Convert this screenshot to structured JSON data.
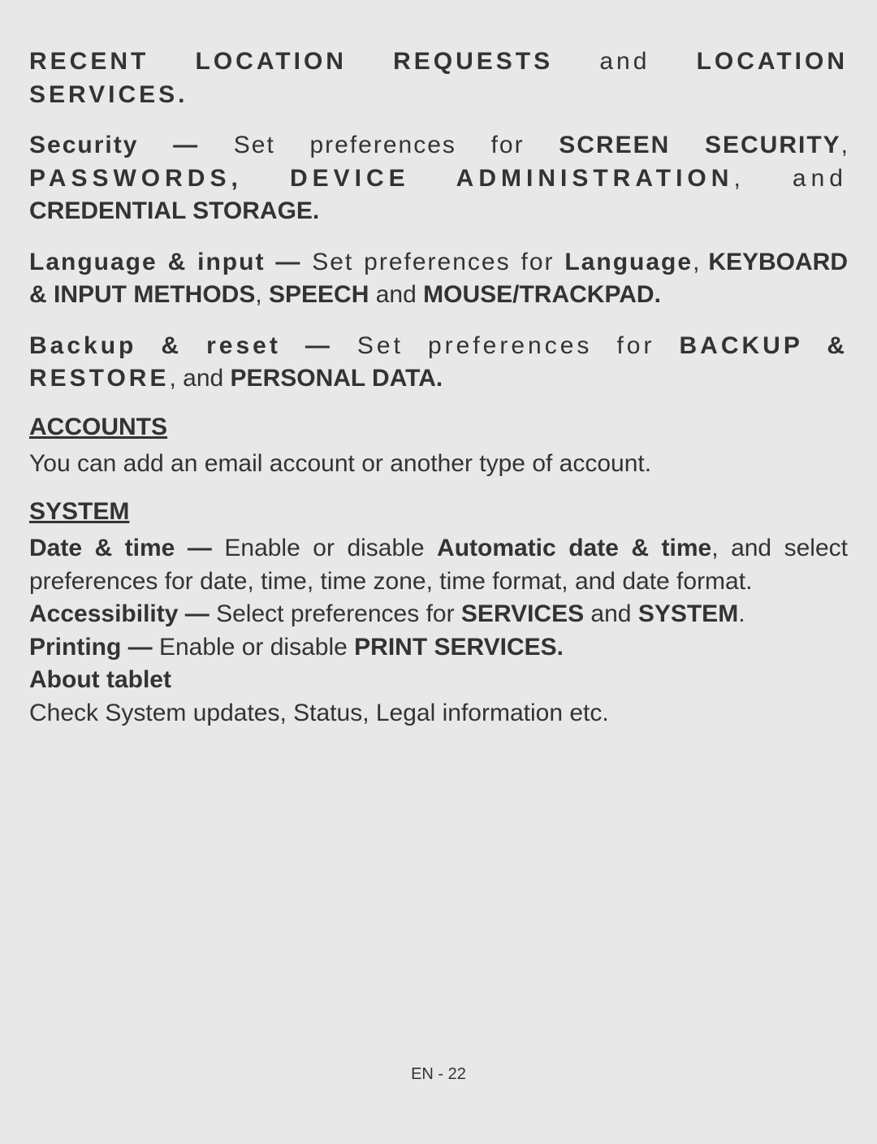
{
  "p1_a": "RECENT LOCATION REQUESTS",
  "p1_b": " and ",
  "p1_c": "LOCATION SERVICES.",
  "p2_a": "Security —",
  "p2_b": " Set preferences for ",
  "p2_c": "SCREEN SECURITY",
  "p2_d": ", ",
  "p2_e": "PASSWORDS, DEVICE ADMINISTRATION",
  "p2_f": ", and ",
  "p2_g": "CREDENTIAL STORAGE.",
  "p3_a": "Language & input —",
  "p3_b": " Set preferences for ",
  "p3_c": "Language",
  "p3_d": ", ",
  "p3_e": "KEYBOARD & INPUT METHODS",
  "p3_f": ", ",
  "p3_g": "SPEECH",
  "p3_h": " and ",
  "p3_i": "MOUSE/TRACKPAD.",
  "p4_a": "Backup & reset —",
  "p4_b": " Set preferences for ",
  "p4_c": "BACKUP & RESTORE",
  "p4_d": ", and ",
  "p4_e": "PERSONAL DATA.",
  "accounts_title": "ACCOUNTS",
  "accounts_body": "You can add an email account or another type of account.",
  "system_title": "SYSTEM",
  "p5_a": "Date & time —",
  "p5_b": " Enable or disable ",
  "p5_c": "Automatic date & time",
  "p5_d": ", and select preferences for date, time, time zone, time format, and date format.",
  "p6_a": "Accessibility —",
  "p6_b": " Select preferences for ",
  "p6_c": "SERVICES",
  "p6_d": " and ",
  "p6_e": "SYSTEM",
  "p6_f": ".",
  "p7_a": "Printing —",
  "p7_b": " Enable or disable ",
  "p7_c": "PRINT SERVICES.",
  "p8_a": "About tablet",
  "p8_b": "Check System updates, Status, Legal information etc.",
  "footer": "EN - 22"
}
